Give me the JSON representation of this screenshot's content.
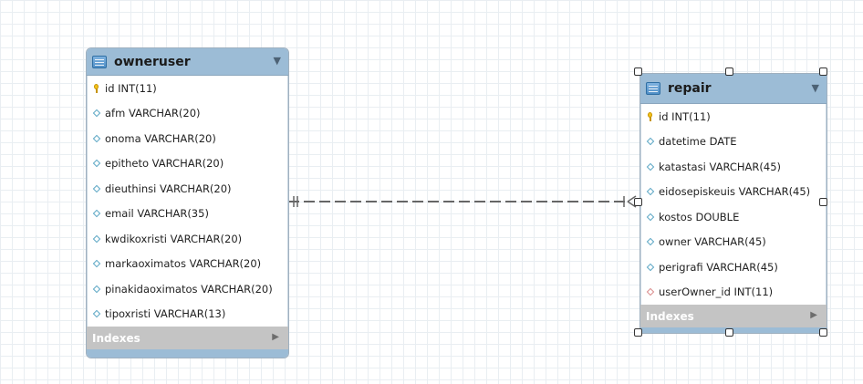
{
  "tables": {
    "owneruser": {
      "title": "owneruser",
      "columns": [
        {
          "text": "id INT(11)",
          "icon": "primary-key-icon"
        },
        {
          "text": "afm VARCHAR(20)",
          "icon": "column-diamond-icon"
        },
        {
          "text": "onoma VARCHAR(20)",
          "icon": "column-diamond-icon"
        },
        {
          "text": "epitheto VARCHAR(20)",
          "icon": "column-diamond-icon"
        },
        {
          "text": "dieuthinsi VARCHAR(20)",
          "icon": "column-diamond-icon"
        },
        {
          "text": "email VARCHAR(35)",
          "icon": "column-diamond-icon"
        },
        {
          "text": "kwdikoxristi VARCHAR(20)",
          "icon": "column-diamond-icon"
        },
        {
          "text": "markaoximatos VARCHAR(20)",
          "icon": "column-diamond-icon"
        },
        {
          "text": "pinakidaoximatos VARCHAR(20)",
          "icon": "column-diamond-icon"
        },
        {
          "text": "tipoxristi VARCHAR(13)",
          "icon": "column-diamond-icon"
        }
      ],
      "indexes_label": "Indexes"
    },
    "repair": {
      "title": "repair",
      "columns": [
        {
          "text": "id INT(11)",
          "icon": "primary-key-icon"
        },
        {
          "text": "datetime DATE",
          "icon": "column-diamond-icon"
        },
        {
          "text": "katastasi VARCHAR(45)",
          "icon": "column-diamond-icon"
        },
        {
          "text": "eidosepiskeuis VARCHAR(45)",
          "icon": "column-diamond-icon"
        },
        {
          "text": "kostos DOUBLE",
          "icon": "column-diamond-icon"
        },
        {
          "text": "owner VARCHAR(45)",
          "icon": "column-diamond-icon"
        },
        {
          "text": "perigrafi VARCHAR(45)",
          "icon": "column-diamond-icon"
        },
        {
          "text": "userOwner_id INT(11)",
          "icon": "foreign-key-icon"
        }
      ],
      "indexes_label": "Indexes"
    }
  },
  "relationship": {
    "from": "owneruser",
    "to": "repair",
    "type": "one-to-many",
    "line_style": "dashed"
  },
  "colors": {
    "header": "#9cbcd6",
    "footer": "#c4c4c4",
    "grid": "#e9eef2",
    "line": "#666666"
  }
}
